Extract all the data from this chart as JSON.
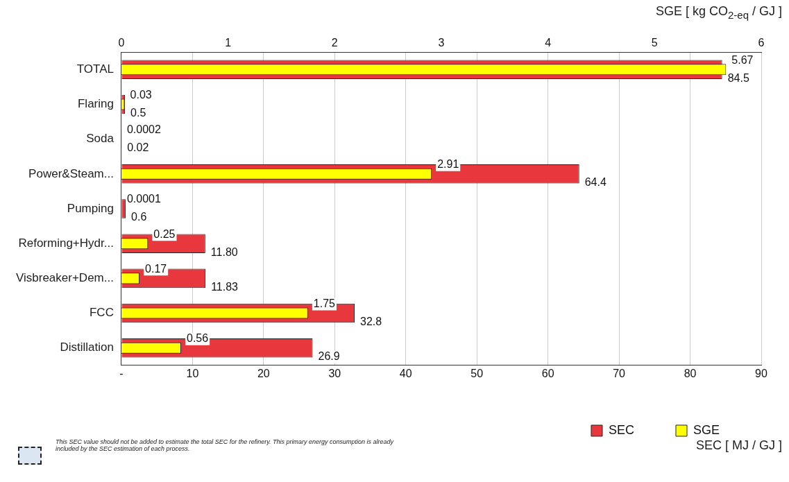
{
  "chart_data": {
    "type": "bar",
    "orientation": "horizontal",
    "categories": [
      "TOTAL",
      "Flaring",
      "Soda",
      "Power&Steam...",
      "Pumping",
      "Reforming+Hydr...",
      "Visbreaker+Dem...",
      "FCC",
      "Distillation"
    ],
    "series": [
      {
        "name": "SEC",
        "color": "#e8383d",
        "values": [
          84.5,
          0.5,
          0.02,
          64.4,
          0.6,
          11.8,
          11.83,
          32.8,
          26.9
        ],
        "value_labels": [
          "84.5",
          "0.5",
          "0.02",
          "64.4",
          "0.6",
          "11.80",
          "11.83",
          "32.8",
          "26.9"
        ]
      },
      {
        "name": "SGE",
        "color": "#ffff00",
        "axis": "x2",
        "values": [
          5.67,
          0.03,
          0.0002,
          2.91,
          0.0001,
          0.25,
          0.17,
          1.75,
          0.56
        ],
        "value_labels": [
          "5.67",
          "0.03",
          "0.0002",
          "2.91",
          "0.0001",
          "0.25",
          "0.17",
          "1.75",
          "0.56"
        ]
      }
    ],
    "xlabel": "SEC [ MJ / GJ ]",
    "x2label": "SGE [ kg CO$_{2-eq}$ / GJ ]",
    "xlim": [
      0,
      90
    ],
    "xticks": [
      {
        "value": 0,
        "label": "-"
      },
      10,
      20,
      30,
      40,
      50,
      60,
      70,
      80,
      90
    ],
    "x2lim": [
      0,
      6
    ],
    "x2ticks": [
      0,
      1,
      2,
      3,
      4,
      5,
      6
    ],
    "grid": "x",
    "legend": "bottom",
    "annotations": [
      "This SEC value should not be added to estimate the total SEC for the refinery. This primary energy consumption is already included by the SEC estimation of each process."
    ]
  }
}
